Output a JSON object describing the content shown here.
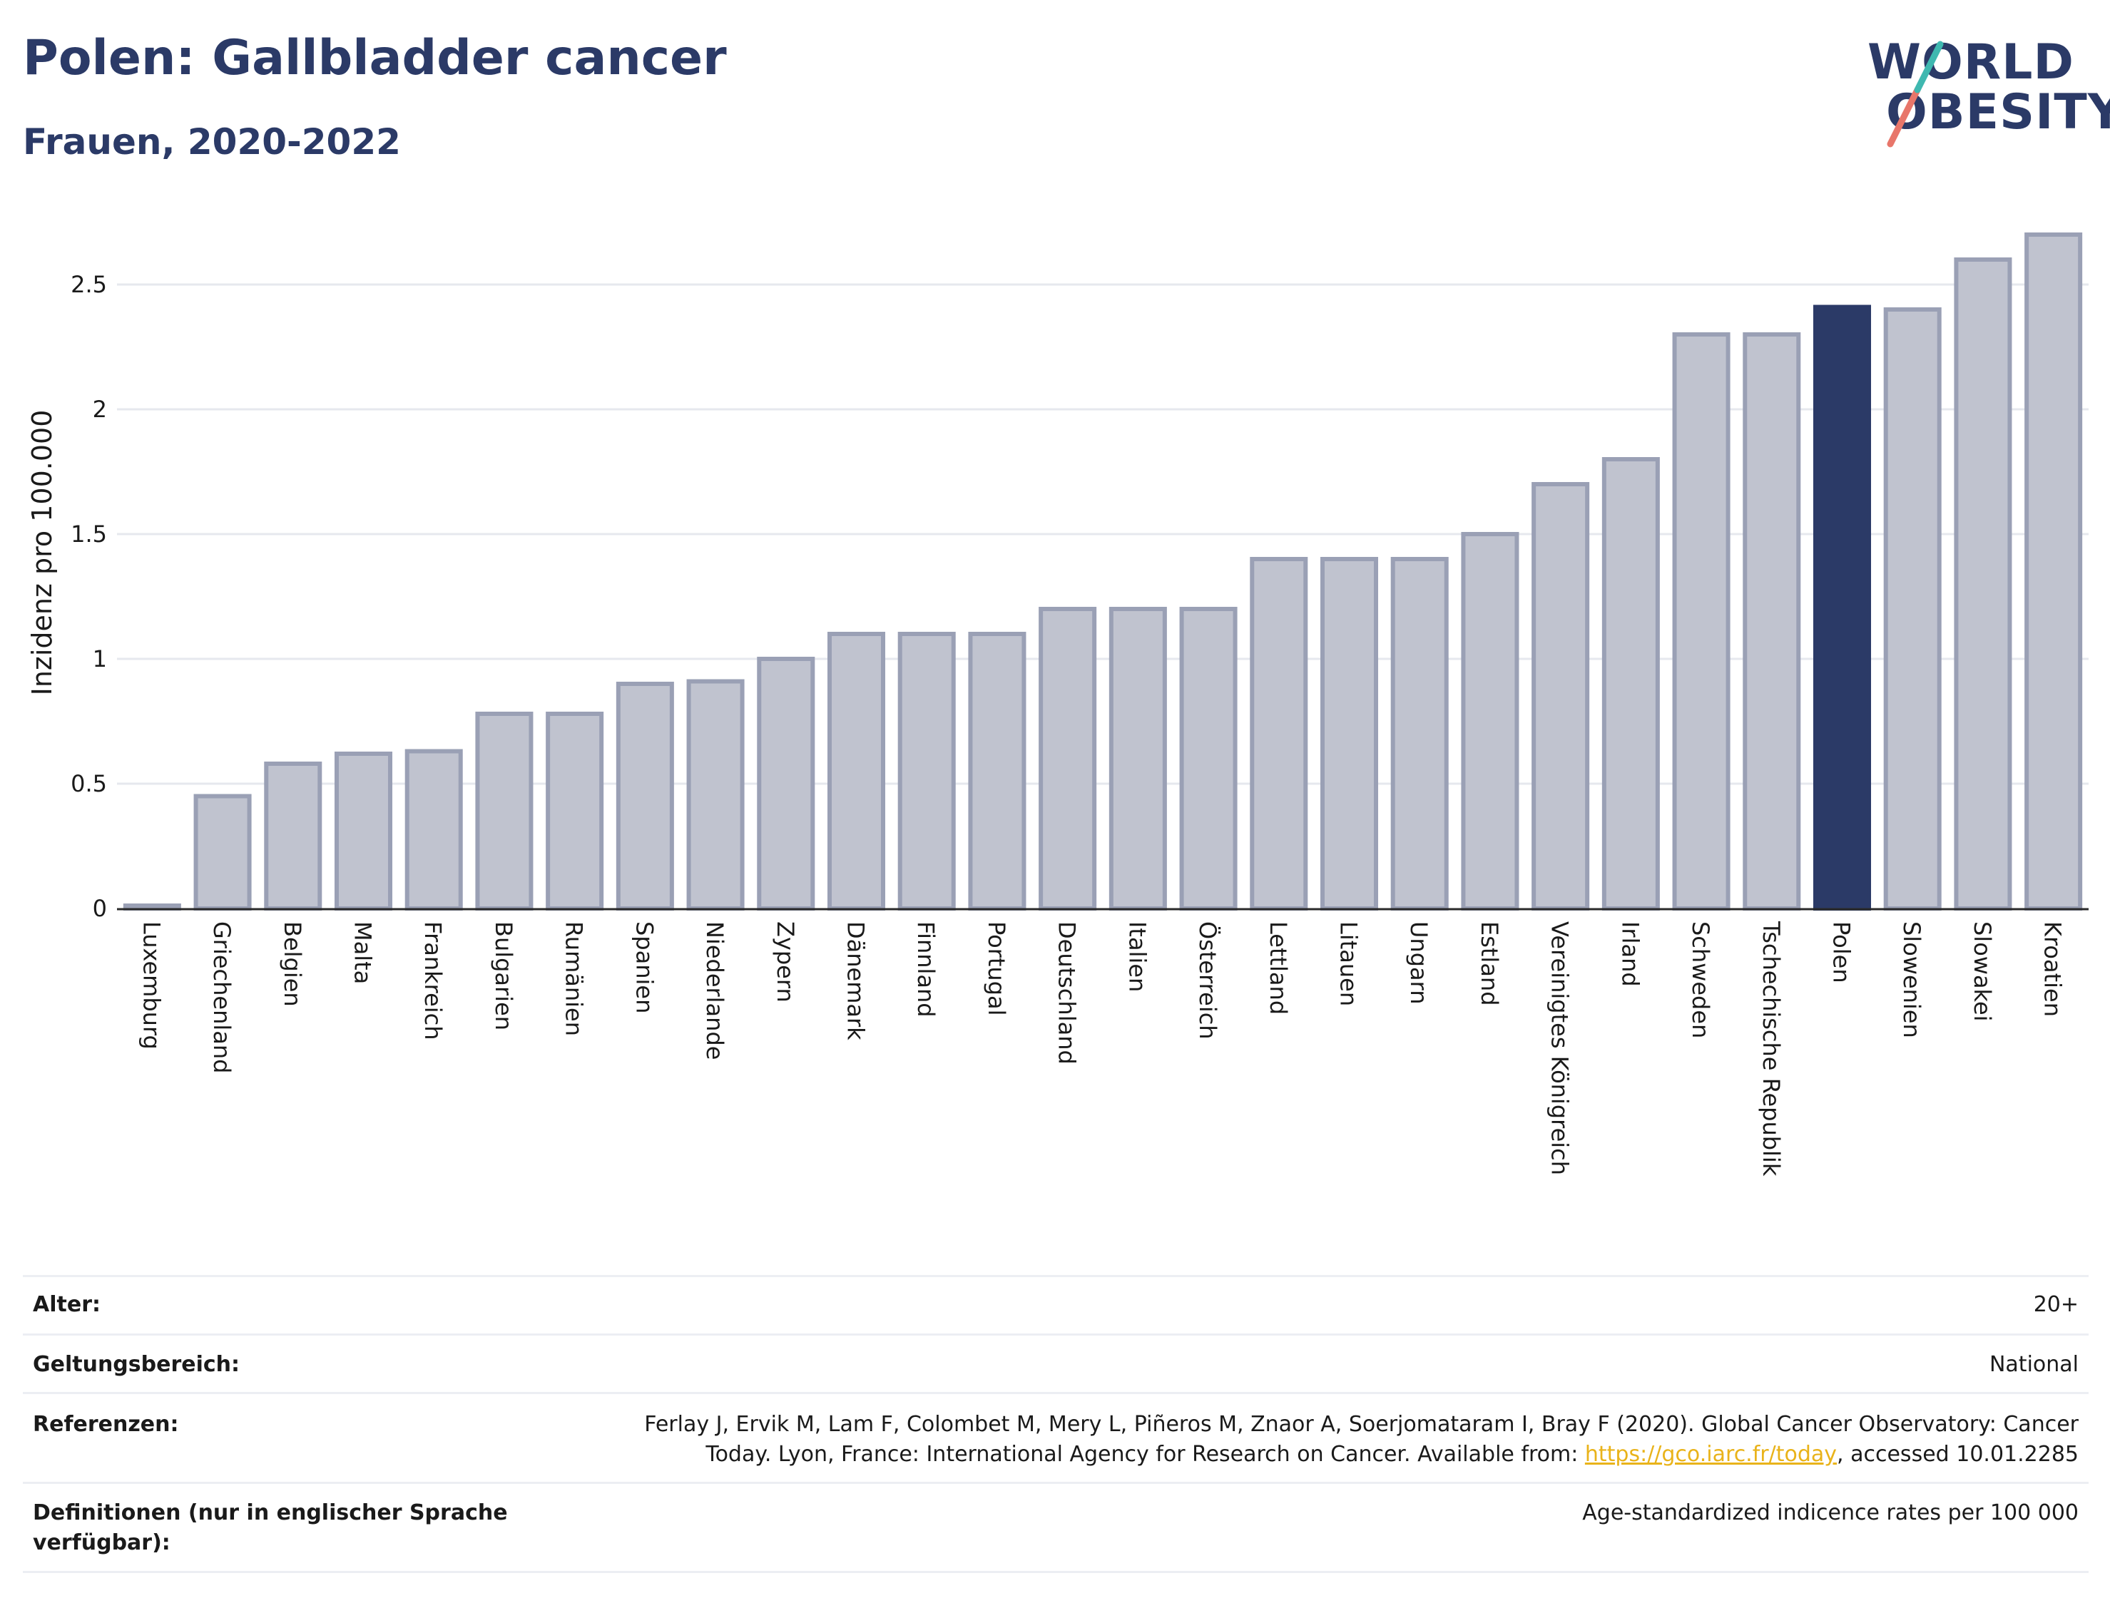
{
  "header": {
    "title": "Polen: Gallbladder cancer",
    "subtitle": "Frauen, 2020-2022",
    "logo_line1": "WORLD",
    "logo_line2": "OBESITY"
  },
  "colors": {
    "highlight": "#2b3a67",
    "bar_fill": "#c0c3cf",
    "bar_stroke": "#9aa0b5",
    "title": "#2b3a67",
    "logo_teal": "#3fb8b0",
    "logo_coral": "#e8766a",
    "link": "#e9b31a"
  },
  "chart_data": {
    "type": "bar",
    "title": "Polen: Gallbladder cancer",
    "subtitle": "Frauen, 2020-2022",
    "ylabel": "Inzidenz pro 100.000",
    "xlabel": "",
    "ylim": [
      0,
      2.75
    ],
    "yticks": [
      0,
      0.5,
      1,
      1.5,
      2,
      2.5
    ],
    "ytick_labels": [
      "0",
      "0.5",
      "1",
      "1.5",
      "2",
      "2.5"
    ],
    "grid": true,
    "highlight": "Polen",
    "categories": [
      "Luxemburg",
      "Griechenland",
      "Belgien",
      "Malta",
      "Frankreich",
      "Bulgarien",
      "Rumänien",
      "Spanien",
      "Niederlande",
      "Zypern",
      "Dänemark",
      "Finnland",
      "Portugal",
      "Deutschland",
      "Italien",
      "Österreich",
      "Lettland",
      "Litauen",
      "Ungarn",
      "Estland",
      "Vereinigtes Königreich",
      "Irland",
      "Schweden",
      "Tschechische Republik",
      "Polen",
      "Slowenien",
      "Slowakei",
      "Kroatien"
    ],
    "values": [
      0.01,
      0.45,
      0.58,
      0.62,
      0.63,
      0.78,
      0.78,
      0.9,
      0.91,
      1.0,
      1.1,
      1.1,
      1.1,
      1.2,
      1.2,
      1.2,
      1.4,
      1.4,
      1.4,
      1.5,
      1.7,
      1.8,
      2.3,
      2.3,
      2.41,
      2.4,
      2.6,
      2.7
    ]
  },
  "meta": {
    "alter_label": "Alter:",
    "alter_value": "20+",
    "geltung_label": "Geltungsbereich:",
    "geltung_value": "National",
    "ref_label": "Referenzen:",
    "ref_line1": "Ferlay J, Ervik M, Lam F, Colombet M, Mery L, Piñeros M, Znaor A, Soerjomataram I, Bray F (2020). Global Cancer Observatory: Cancer",
    "ref_line2_pre": "Today. Lyon, France: International Agency for Research on Cancer. Available from: ",
    "ref_link": "https://gco.iarc.fr/today",
    "ref_line2_post": ", accessed 10.01.2285",
    "def_label_line1": "Definitionen (nur in englischer Sprache",
    "def_label_line2": "verfügbar):",
    "def_value": "Age-standardized indicence rates per 100 000"
  }
}
